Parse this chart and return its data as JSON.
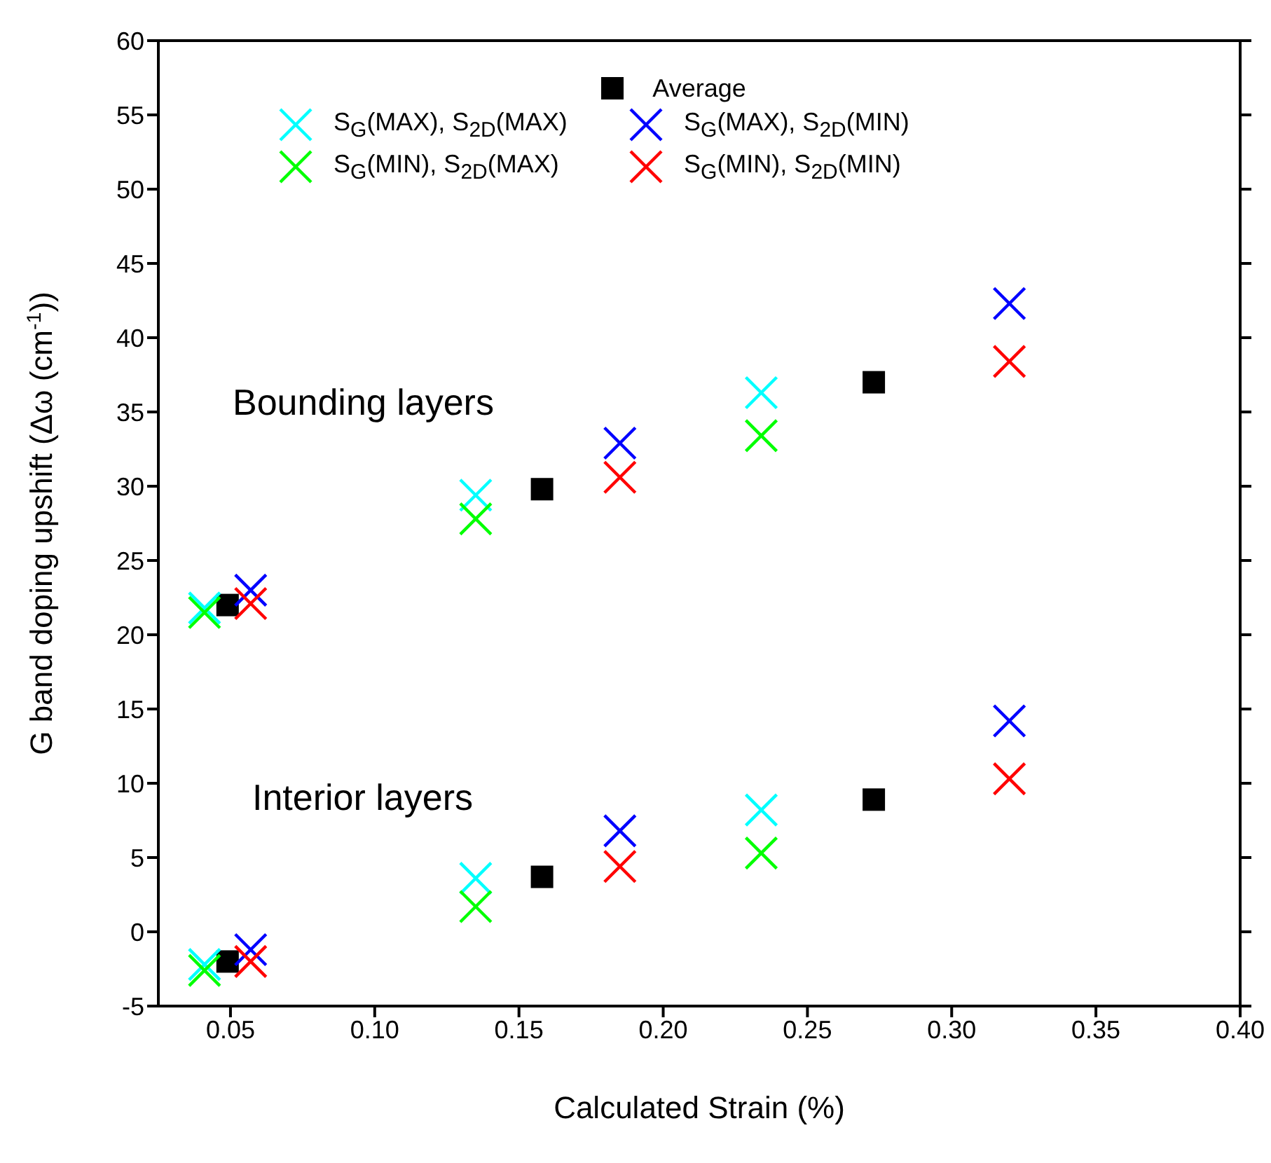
{
  "chart_data": {
    "type": "scatter",
    "xlabel": "Calculated Strain (%)",
    "ylabel": "G band doping upshift (Δω (cm$^{-1}$))",
    "xlim": [
      0.025,
      0.4
    ],
    "xticks": [
      {
        "value": 0.05,
        "label": "0.05"
      },
      {
        "value": 0.1,
        "label": "0.10"
      },
      {
        "value": 0.15,
        "label": "0.15"
      },
      {
        "value": 0.2,
        "label": "0.20"
      },
      {
        "value": 0.25,
        "label": "0.25"
      },
      {
        "value": 0.3,
        "label": "0.30"
      },
      {
        "value": 0.35,
        "label": "0.35"
      },
      {
        "value": 0.4,
        "label": "0.40"
      }
    ],
    "ylim": [
      -5,
      60
    ],
    "yticks": [
      -5,
      0,
      5,
      10,
      15,
      20,
      25,
      30,
      35,
      40,
      45,
      50,
      55,
      60
    ],
    "grid": false,
    "legend": "top",
    "annotations": [
      "Bounding layers",
      "Interior layers"
    ],
    "series": [
      {
        "name": "Average",
        "color": "#000000",
        "marker": "square",
        "x": [
          0.049,
          0.158,
          0.273,
          0.049,
          0.158,
          0.273
        ],
        "values": [
          22.0,
          29.8,
          37.0,
          -2.0,
          3.7,
          8.9
        ]
      },
      {
        "name": "S$_{G}$(MAX), S$_{2D}$(MAX)",
        "color": "#00ffff",
        "marker": "cross",
        "x": [
          0.041,
          0.135,
          0.234,
          0.041,
          0.135,
          0.234
        ],
        "values": [
          21.8,
          29.4,
          36.3,
          -2.2,
          3.6,
          8.2
        ]
      },
      {
        "name": "S$_{G}$(MAX), S$_{2D}$(MIN)",
        "color": "#0000ff",
        "marker": "cross",
        "x": [
          0.057,
          0.185,
          0.32,
          0.057,
          0.185,
          0.32
        ],
        "values": [
          23.0,
          32.9,
          42.3,
          -1.2,
          6.8,
          14.2
        ]
      },
      {
        "name": "S$_{G}$(MIN), S$_{2D}$(MAX)",
        "color": "#00ff00",
        "marker": "cross",
        "x": [
          0.041,
          0.135,
          0.234,
          0.041,
          0.135,
          0.234
        ],
        "values": [
          21.5,
          27.8,
          33.4,
          -2.6,
          1.7,
          5.3
        ]
      },
      {
        "name": "S$_{G}$(MIN), S$_{2D}$(MIN)",
        "color": "#ff0000",
        "marker": "cross",
        "x": [
          0.057,
          0.185,
          0.32,
          0.057,
          0.185,
          0.32
        ],
        "values": [
          22.1,
          30.6,
          38.4,
          -2.0,
          4.4,
          10.3
        ]
      }
    ]
  }
}
